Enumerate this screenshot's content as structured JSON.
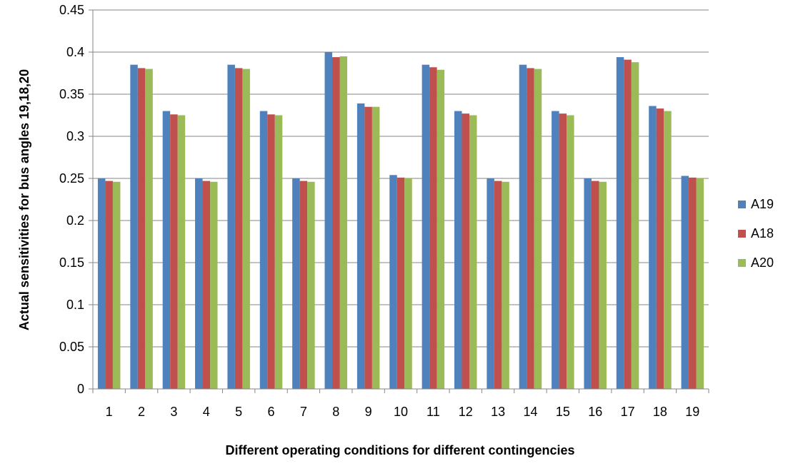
{
  "chart_data": {
    "type": "bar",
    "title": "",
    "xlabel": "Different  operating conditions for different contingencies",
    "ylabel": "Actual sensitivities for bus angles 19,18,20",
    "ylim": [
      0,
      0.45
    ],
    "ytick_step": 0.05,
    "ytick_labels": [
      "0",
      "0.05",
      "0.1",
      "0.15",
      "0.2",
      "0.25",
      "0.3",
      "0.35",
      "0.4",
      "0.45"
    ],
    "grid": true,
    "legend_position": "right",
    "categories": [
      "1",
      "2",
      "3",
      "4",
      "5",
      "6",
      "7",
      "8",
      "9",
      "10",
      "11",
      "12",
      "13",
      "14",
      "15",
      "16",
      "17",
      "18",
      "19"
    ],
    "series": [
      {
        "name": "A19",
        "color": "#4F81BD",
        "values": [
          0.25,
          0.385,
          0.33,
          0.25,
          0.385,
          0.33,
          0.25,
          0.4,
          0.339,
          0.254,
          0.385,
          0.33,
          0.25,
          0.385,
          0.33,
          0.25,
          0.394,
          0.336,
          0.253
        ]
      },
      {
        "name": "A18",
        "color": "#C0504D",
        "values": [
          0.247,
          0.381,
          0.326,
          0.247,
          0.381,
          0.326,
          0.247,
          0.394,
          0.335,
          0.251,
          0.382,
          0.327,
          0.247,
          0.381,
          0.327,
          0.247,
          0.391,
          0.333,
          0.251
        ]
      },
      {
        "name": "A20",
        "color": "#9BBB59",
        "values": [
          0.246,
          0.38,
          0.325,
          0.246,
          0.38,
          0.325,
          0.246,
          0.395,
          0.335,
          0.25,
          0.379,
          0.325,
          0.246,
          0.38,
          0.325,
          0.246,
          0.388,
          0.33,
          0.25
        ]
      }
    ]
  }
}
